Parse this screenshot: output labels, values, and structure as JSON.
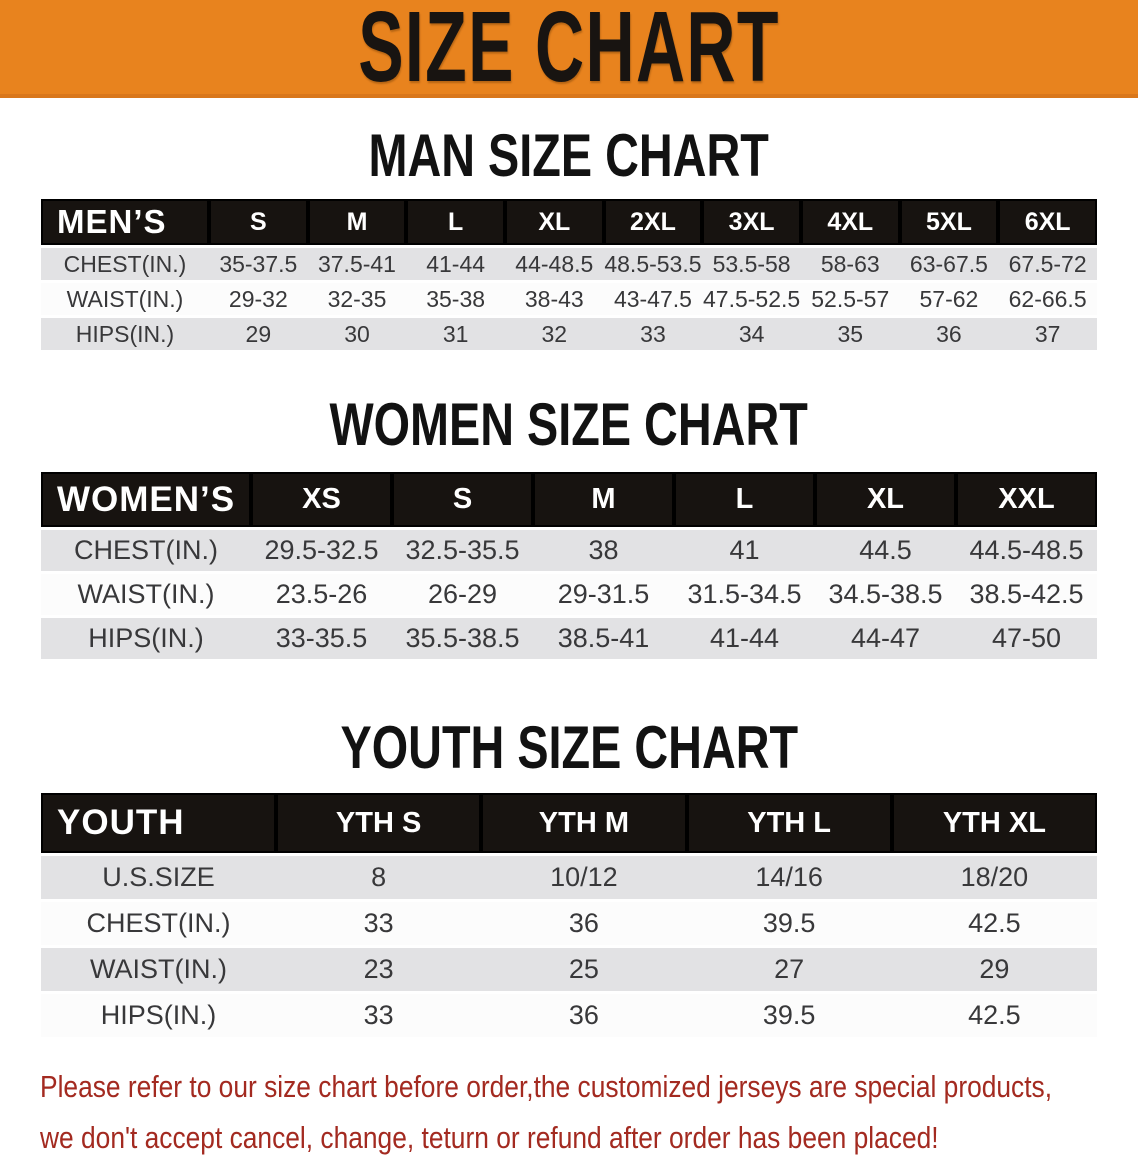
{
  "banner": {
    "title": "SIZE CHART",
    "background_color": "#E8831E",
    "text_color": "#181411"
  },
  "colors": {
    "table_header_black": "#171310",
    "row_stripe_gray": "#E2E2E4",
    "row_white": "#FCFCFC",
    "disclaimer_red": "#A32A20"
  },
  "sections": [
    {
      "heading": "MAN SIZE CHART",
      "table": {
        "header_label": "MEN’S",
        "sizes": [
          "S",
          "M",
          "L",
          "XL",
          "2XL",
          "3XL",
          "4XL",
          "5XL",
          "6XL"
        ],
        "rows": [
          {
            "label": "CHEST(IN.)",
            "values": [
              "35-37.5",
              "37.5-41",
              "41-44",
              "44-48.5",
              "48.5-53.5",
              "53.5-58",
              "58-63",
              "63-67.5",
              "67.5-72"
            ]
          },
          {
            "label": "WAIST(IN.)",
            "values": [
              "29-32",
              "32-35",
              "35-38",
              "38-43",
              "43-47.5",
              "47.5-52.5",
              "52.5-57",
              "57-62",
              "62-66.5"
            ]
          },
          {
            "label": "HIPS(IN.)",
            "values": [
              "29",
              "30",
              "31",
              "32",
              "33",
              "34",
              "35",
              "36",
              "37"
            ]
          }
        ]
      }
    },
    {
      "heading": "WOMEN SIZE CHART",
      "table": {
        "header_label": "WOMEN’S",
        "sizes": [
          "XS",
          "S",
          "M",
          "L",
          "XL",
          "XXL"
        ],
        "rows": [
          {
            "label": "CHEST(IN.)",
            "values": [
              "29.5-32.5",
              "32.5-35.5",
              "38",
              "41",
              "44.5",
              "44.5-48.5"
            ]
          },
          {
            "label": "WAIST(IN.)",
            "values": [
              "23.5-26",
              "26-29",
              "29-31.5",
              "31.5-34.5",
              "34.5-38.5",
              "38.5-42.5"
            ]
          },
          {
            "label": "HIPS(IN.)",
            "values": [
              "33-35.5",
              "35.5-38.5",
              "38.5-41",
              "41-44",
              "44-47",
              "47-50"
            ]
          }
        ]
      }
    },
    {
      "heading": "YOUTH SIZE CHART",
      "table": {
        "header_label": "YOUTH",
        "sizes": [
          "YTH S",
          "YTH M",
          "YTH L",
          "YTH XL"
        ],
        "rows": [
          {
            "label": "U.S.SIZE",
            "values": [
              "8",
              "10/12",
              "14/16",
              "18/20"
            ]
          },
          {
            "label": "CHEST(IN.)",
            "values": [
              "33",
              "36",
              "39.5",
              "42.5"
            ]
          },
          {
            "label": "WAIST(IN.)",
            "values": [
              "23",
              "25",
              "27",
              "29"
            ]
          },
          {
            "label": "HIPS(IN.)",
            "values": [
              "33",
              "36",
              "39.5",
              "42.5"
            ]
          }
        ]
      }
    }
  ],
  "disclaimer": {
    "line1": "Please refer to our size chart before order,the customized jerseys are special products,",
    "line2": "we don't accept cancel, change, teturn or refund after order has been placed!"
  }
}
